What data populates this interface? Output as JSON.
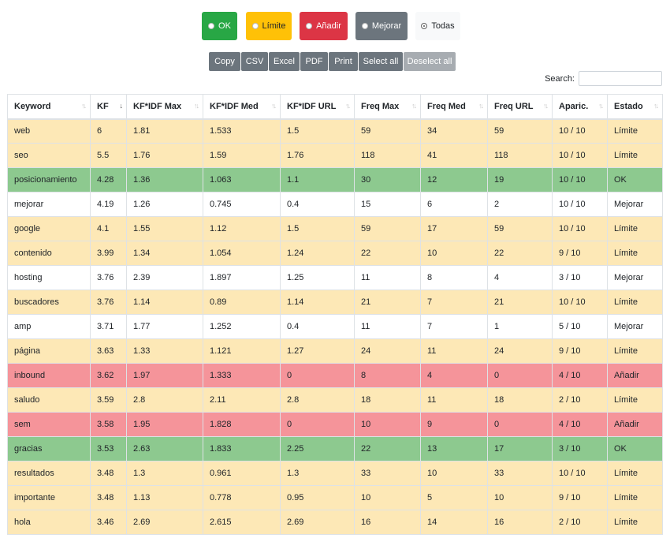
{
  "filters": [
    {
      "label": "OK",
      "checked": false
    },
    {
      "label": "Límite",
      "checked": false
    },
    {
      "label": "Añadir",
      "checked": false
    },
    {
      "label": "Mejorar",
      "checked": false
    },
    {
      "label": "Todas",
      "checked": true
    }
  ],
  "exports": [
    "Copy",
    "CSV",
    "Excel",
    "PDF",
    "Print",
    "Select all",
    "Deselect all"
  ],
  "search": {
    "label": "Search:",
    "value": ""
  },
  "table": {
    "columns": [
      "Keyword",
      "KF",
      "KF*IDF Max",
      "KF*IDF Med",
      "KF*IDF URL",
      "Freq Max",
      "Freq Med",
      "Freq URL",
      "Aparic.",
      "Estado"
    ],
    "rows": [
      [
        "web",
        "6",
        "1.81",
        "1.533",
        "1.5",
        "59",
        "34",
        "59",
        "10 / 10",
        "Límite"
      ],
      [
        "seo",
        "5.5",
        "1.76",
        "1.59",
        "1.76",
        "118",
        "41",
        "118",
        "10 / 10",
        "Límite"
      ],
      [
        "posicionamiento",
        "4.28",
        "1.36",
        "1.063",
        "1.1",
        "30",
        "12",
        "19",
        "10 / 10",
        "OK"
      ],
      [
        "mejorar",
        "4.19",
        "1.26",
        "0.745",
        "0.4",
        "15",
        "6",
        "2",
        "10 / 10",
        "Mejorar"
      ],
      [
        "google",
        "4.1",
        "1.55",
        "1.12",
        "1.5",
        "59",
        "17",
        "59",
        "10 / 10",
        "Límite"
      ],
      [
        "contenido",
        "3.99",
        "1.34",
        "1.054",
        "1.24",
        "22",
        "10",
        "22",
        "9 / 10",
        "Límite"
      ],
      [
        "hosting",
        "3.76",
        "2.39",
        "1.897",
        "1.25",
        "11",
        "8",
        "4",
        "3 / 10",
        "Mejorar"
      ],
      [
        "buscadores",
        "3.76",
        "1.14",
        "0.89",
        "1.14",
        "21",
        "7",
        "21",
        "10 / 10",
        "Límite"
      ],
      [
        "amp",
        "3.71",
        "1.77",
        "1.252",
        "0.4",
        "11",
        "7",
        "1",
        "5 / 10",
        "Mejorar"
      ],
      [
        "página",
        "3.63",
        "1.33",
        "1.121",
        "1.27",
        "24",
        "11",
        "24",
        "9 / 10",
        "Límite"
      ],
      [
        "inbound",
        "3.62",
        "1.97",
        "1.333",
        "0",
        "8",
        "4",
        "0",
        "4 / 10",
        "Añadir"
      ],
      [
        "saludo",
        "3.59",
        "2.8",
        "2.11",
        "2.8",
        "18",
        "11",
        "18",
        "2 / 10",
        "Límite"
      ],
      [
        "sem",
        "3.58",
        "1.95",
        "1.828",
        "0",
        "10",
        "9",
        "0",
        "4 / 10",
        "Añadir"
      ],
      [
        "gracias",
        "3.53",
        "2.63",
        "1.833",
        "2.25",
        "22",
        "13",
        "17",
        "3 / 10",
        "OK"
      ],
      [
        "resultados",
        "3.48",
        "1.3",
        "0.961",
        "1.3",
        "33",
        "10",
        "33",
        "10 / 10",
        "Límite"
      ],
      [
        "importante",
        "3.48",
        "1.13",
        "0.778",
        "0.95",
        "10",
        "5",
        "10",
        "9 / 10",
        "Límite"
      ],
      [
        "hola",
        "3.46",
        "2.69",
        "2.615",
        "2.69",
        "16",
        "14",
        "16",
        "2 / 10",
        "Límite"
      ]
    ]
  },
  "colors": {
    "ok_button": "#28a745",
    "limite_button": "#ffc107",
    "anadir_button": "#dc3545",
    "mejorar_button": "#6c757d",
    "row_ok": "#8dc98f",
    "row_limite": "#fde8b6",
    "row_anadir": "#f5949a",
    "row_mejorar": "#ffffff"
  },
  "sort": {
    "column": "KF",
    "direction": "descending"
  }
}
